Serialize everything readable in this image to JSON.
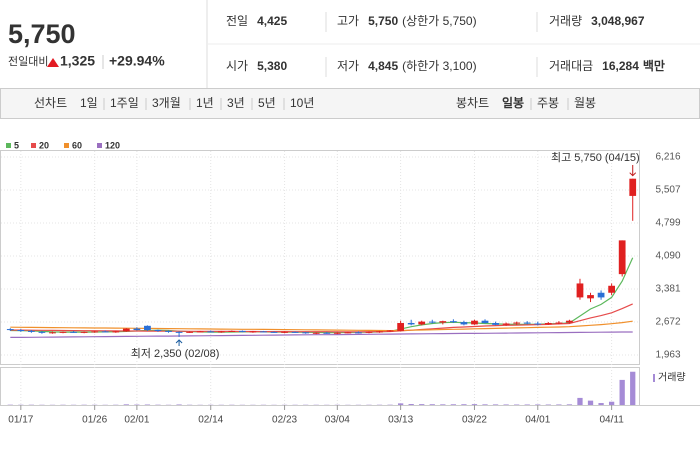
{
  "header": {
    "price": "5,750",
    "change_label": "전일대비",
    "change": "1,325",
    "change_rate": "+29.94%",
    "up_color": "#e31b23",
    "quotes": [
      {
        "label": "전일",
        "value": "4,425"
      },
      {
        "label": "고가",
        "value": "5,750",
        "note": "(상한가 5,750)",
        "color": "#e31b23"
      },
      {
        "label": "거래량",
        "value": "3,048,967"
      },
      {
        "label": "시가",
        "value": "5,380",
        "color": "#e31b23"
      },
      {
        "label": "저가",
        "value": "4,845",
        "note": "(하한가 3,100)",
        "color": "#e31b23"
      },
      {
        "label": "거래대금",
        "value": "16,284",
        "unit": "백만"
      }
    ]
  },
  "tabs": {
    "line_label": "선차트",
    "line_periods": [
      "1일",
      "1주일",
      "3개월",
      "1년",
      "3년",
      "5년",
      "10년"
    ],
    "candle_label": "봉차트",
    "candle_periods": [
      "일봉",
      "주봉",
      "월봉"
    ],
    "active": "일봉"
  },
  "chart_data": {
    "type": "candlestick",
    "categories": [
      null,
      "01/17",
      null,
      null,
      null,
      null,
      null,
      null,
      "01/26",
      null,
      null,
      null,
      "02/01",
      null,
      null,
      null,
      null,
      null,
      null,
      "02/14",
      null,
      null,
      null,
      null,
      null,
      null,
      "02/23",
      null,
      null,
      null,
      null,
      "03/04",
      null,
      null,
      null,
      null,
      null,
      "03/13",
      null,
      null,
      null,
      null,
      null,
      null,
      "03/22",
      null,
      null,
      null,
      null,
      null,
      "04/01",
      null,
      null,
      null,
      null,
      null,
      null,
      "04/11",
      null,
      null
    ],
    "open": [
      2520,
      2500,
      2480,
      2460,
      2440,
      2450,
      2460,
      2450,
      2460,
      2470,
      2460,
      2470,
      2530,
      2590,
      2500,
      2480,
      2460,
      2450,
      2460,
      2470,
      2460,
      2470,
      2480,
      2460,
      2470,
      2460,
      2450,
      2460,
      2450,
      2430,
      2440,
      2430,
      2440,
      2450,
      2440,
      2460,
      2470,
      2480,
      2650,
      2620,
      2680,
      2660,
      2690,
      2670,
      2620,
      2700,
      2650,
      2610,
      2640,
      2660,
      2640,
      2620,
      2650,
      2660,
      3200,
      3180,
      3300,
      3300,
      3700,
      5380
    ],
    "high": [
      2540,
      2520,
      2500,
      2480,
      2470,
      2470,
      2480,
      2470,
      2480,
      2490,
      2480,
      2540,
      2560,
      2600,
      2510,
      2490,
      2470,
      2470,
      2480,
      2490,
      2480,
      2490,
      2490,
      2480,
      2480,
      2470,
      2470,
      2470,
      2460,
      2450,
      2460,
      2450,
      2460,
      2470,
      2470,
      2480,
      2500,
      2700,
      2720,
      2700,
      2720,
      2700,
      2730,
      2700,
      2720,
      2730,
      2680,
      2660,
      2680,
      2690,
      2680,
      2670,
      2690,
      2720,
      3600,
      3300,
      3350,
      3500,
      4425,
      5750
    ],
    "low": [
      2480,
      2460,
      2440,
      2420,
      2420,
      2430,
      2440,
      2430,
      2440,
      2450,
      2440,
      2460,
      2490,
      2480,
      2460,
      2440,
      2350,
      2440,
      2450,
      2450,
      2440,
      2460,
      2450,
      2440,
      2450,
      2440,
      2430,
      2440,
      2420,
      2410,
      2420,
      2410,
      2430,
      2430,
      2430,
      2440,
      2460,
      2470,
      2600,
      2600,
      2640,
      2620,
      2650,
      2600,
      2610,
      2640,
      2600,
      2590,
      2610,
      2620,
      2600,
      2610,
      2620,
      2640,
      3150,
      3100,
      3150,
      3250,
      3650,
      4845
    ],
    "close": [
      2500,
      2480,
      2460,
      2440,
      2450,
      2460,
      2450,
      2460,
      2470,
      2460,
      2470,
      2530,
      2500,
      2500,
      2480,
      2460,
      2450,
      2460,
      2470,
      2460,
      2470,
      2480,
      2460,
      2470,
      2460,
      2450,
      2460,
      2450,
      2430,
      2440,
      2430,
      2440,
      2450,
      2440,
      2460,
      2470,
      2490,
      2650,
      2620,
      2680,
      2660,
      2690,
      2670,
      2620,
      2700,
      2650,
      2610,
      2640,
      2660,
      2640,
      2620,
      2650,
      2660,
      2700,
      3500,
      3250,
      3200,
      3450,
      4425,
      5750
    ],
    "volume": [
      30000,
      25000,
      28000,
      22000,
      20000,
      24000,
      21000,
      26000,
      23000,
      20000,
      25000,
      60000,
      40000,
      45000,
      30000,
      22000,
      50000,
      25000,
      20000,
      22000,
      21000,
      24000,
      20000,
      19000,
      22000,
      18000,
      20000,
      21000,
      25000,
      23000,
      20000,
      22000,
      19000,
      21000,
      24000,
      26000,
      30000,
      150000,
      90000,
      80000,
      70000,
      60000,
      65000,
      70000,
      80000,
      60000,
      55000,
      50000,
      45000,
      48000,
      50000,
      45000,
      52000,
      60000,
      650000,
      400000,
      180000,
      300000,
      2300000,
      3048967
    ],
    "volume_label": "거래량",
    "volume_color": "#a58bd6",
    "volume_lim": [
      0,
      3300000
    ],
    "up_color": "#e02020",
    "down_color": "#2a6fd6",
    "moving_averages": [
      {
        "name": "5",
        "color": "#5cb85c",
        "values": [
          2490,
          2485,
          2480,
          2470,
          2460,
          2455,
          2455,
          2455,
          2458,
          2460,
          2462,
          2470,
          2480,
          2490,
          2495,
          2490,
          2475,
          2465,
          2460,
          2455,
          2455,
          2458,
          2460,
          2462,
          2460,
          2458,
          2455,
          2452,
          2450,
          2448,
          2445,
          2445,
          2448,
          2450,
          2455,
          2460,
          2470,
          2520,
          2570,
          2610,
          2640,
          2660,
          2665,
          2660,
          2650,
          2640,
          2630,
          2625,
          2620,
          2620,
          2625,
          2630,
          2640,
          2650,
          2800,
          2950,
          3050,
          3200,
          3550,
          4050
        ]
      },
      {
        "name": "20",
        "color": "#e64b4b",
        "values": [
          2500,
          2498,
          2496,
          2494,
          2492,
          2490,
          2488,
          2486,
          2484,
          2482,
          2480,
          2479,
          2478,
          2477,
          2476,
          2475,
          2474,
          2473,
          2472,
          2471,
          2470,
          2469,
          2468,
          2467,
          2466,
          2465,
          2465,
          2464,
          2464,
          2463,
          2463,
          2462,
          2462,
          2462,
          2463,
          2465,
          2468,
          2480,
          2495,
          2510,
          2525,
          2540,
          2555,
          2565,
          2575,
          2585,
          2595,
          2600,
          2605,
          2610,
          2615,
          2620,
          2630,
          2640,
          2700,
          2760,
          2810,
          2870,
          2960,
          3060
        ]
      },
      {
        "name": "60",
        "color": "#f0902c",
        "values": [
          2560,
          2558,
          2556,
          2554,
          2552,
          2550,
          2548,
          2546,
          2544,
          2542,
          2540,
          2538,
          2536,
          2534,
          2532,
          2530,
          2528,
          2526,
          2524,
          2522,
          2520,
          2518,
          2516,
          2514,
          2512,
          2510,
          2508,
          2506,
          2504,
          2502,
          2500,
          2498,
          2496,
          2494,
          2492,
          2490,
          2488,
          2490,
          2495,
          2500,
          2505,
          2510,
          2515,
          2520,
          2525,
          2530,
          2535,
          2540,
          2545,
          2550,
          2555,
          2560,
          2565,
          2570,
          2585,
          2600,
          2615,
          2635,
          2660,
          2690
        ]
      },
      {
        "name": "120",
        "color": "#9a6fc0",
        "values": [
          2340,
          2342,
          2344,
          2346,
          2348,
          2350,
          2352,
          2354,
          2356,
          2358,
          2360,
          2362,
          2364,
          2366,
          2368,
          2370,
          2372,
          2374,
          2376,
          2378,
          2380,
          2382,
          2384,
          2386,
          2388,
          2390,
          2392,
          2394,
          2396,
          2398,
          2400,
          2402,
          2404,
          2406,
          2408,
          2410,
          2412,
          2414,
          2416,
          2418,
          2420,
          2422,
          2424,
          2426,
          2428,
          2430,
          2432,
          2434,
          2436,
          2438,
          2440,
          2442,
          2444,
          2446,
          2448,
          2450,
          2452,
          2454,
          2456,
          2458
        ]
      }
    ],
    "annotations": {
      "max": "최고 5,750 (04/15)",
      "min": "최저 2,350 (02/08)"
    },
    "ylim": [
      1963,
      6216
    ],
    "yticks": [
      {
        "value": 1963,
        "label": "1,963"
      },
      {
        "value": 2672,
        "label": "2,672"
      },
      {
        "value": 3381,
        "label": "3,381"
      },
      {
        "value": 4090,
        "label": "4,090"
      },
      {
        "value": 4799,
        "label": "4,799"
      },
      {
        "value": 5507,
        "label": "5,507"
      },
      {
        "value": 6216,
        "label": "6,216"
      }
    ],
    "grid": true
  }
}
